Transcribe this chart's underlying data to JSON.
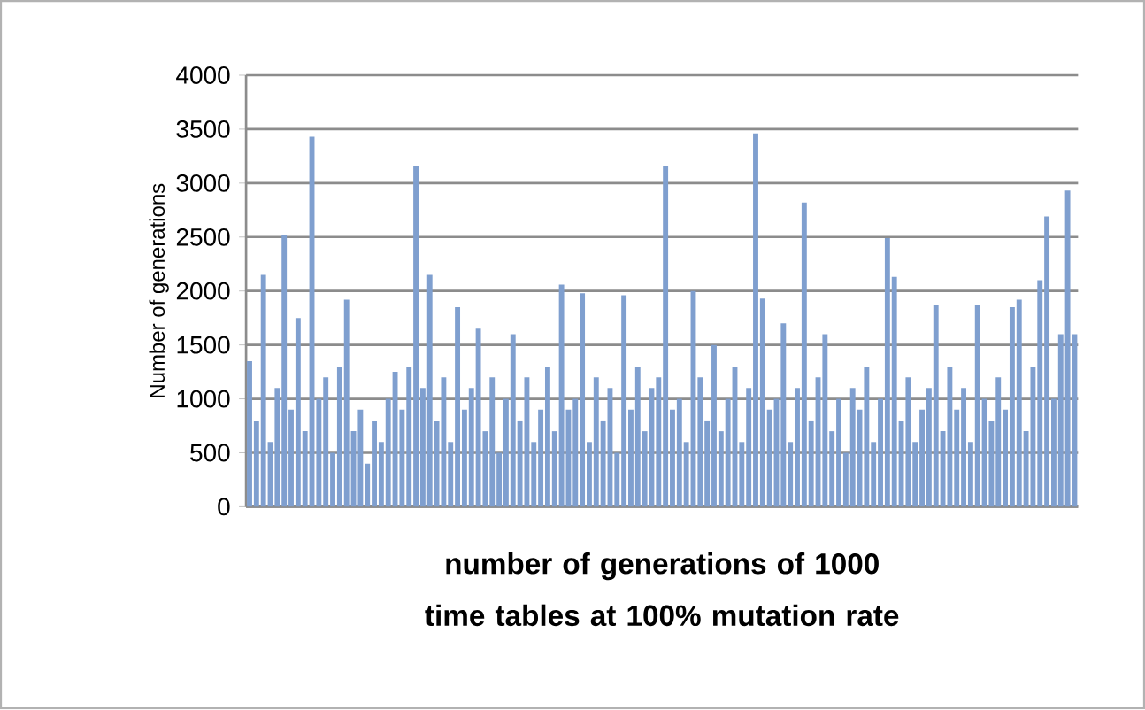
{
  "chart_data": {
    "type": "bar",
    "xlabel": "number of generations of 1000  time tables at 100% mutation rate",
    "ylabel": "Number of generations",
    "categories": [
      null,
      null,
      null,
      null,
      null,
      null,
      null,
      null,
      null,
      null,
      null,
      null,
      null,
      null,
      null,
      null,
      null,
      null,
      null,
      null,
      null,
      null,
      null,
      null,
      null,
      null,
      null,
      null,
      null,
      null,
      null,
      null,
      null,
      null,
      null,
      null,
      null,
      null,
      null,
      null,
      null,
      null,
      null,
      null,
      null,
      null,
      null,
      null,
      null,
      null,
      null,
      null,
      null,
      null,
      null,
      null,
      null,
      null,
      null,
      null,
      null,
      null,
      null,
      null,
      null,
      null,
      null,
      null,
      null,
      null,
      null,
      null,
      null,
      null,
      null,
      null,
      null,
      null,
      null,
      null,
      null,
      null,
      null,
      null,
      null,
      null,
      null,
      null,
      null,
      null,
      null,
      null,
      null,
      null,
      null,
      null,
      null,
      null,
      null,
      null,
      null,
      null,
      null,
      null,
      null,
      null,
      null,
      null,
      null,
      null,
      null,
      null,
      null,
      null,
      null,
      null,
      null,
      null,
      null,
      null
    ],
    "values": [
      1350,
      800,
      2150,
      600,
      1100,
      2520,
      900,
      1750,
      700,
      3430,
      1000,
      1200,
      500,
      1300,
      1920,
      700,
      900,
      400,
      800,
      600,
      1000,
      1250,
      900,
      1300,
      3160,
      1100,
      2150,
      800,
      1200,
      600,
      1850,
      900,
      1100,
      1650,
      700,
      1200,
      500,
      1000,
      1600,
      800,
      1200,
      600,
      900,
      1300,
      700,
      2060,
      900,
      1000,
      1980,
      600,
      1200,
      800,
      1100,
      500,
      1960,
      900,
      1300,
      700,
      1100,
      1200,
      3160,
      900,
      1000,
      600,
      2000,
      1200,
      800,
      1500,
      700,
      1000,
      1300,
      600,
      1100,
      3460,
      1930,
      900,
      1000,
      1700,
      600,
      1100,
      2820,
      800,
      1200,
      1600,
      700,
      1000,
      500,
      1100,
      900,
      1300,
      600,
      1000,
      2490,
      2130,
      800,
      1200,
      600,
      900,
      1100,
      1870,
      700,
      1300,
      900,
      1100,
      600,
      1870,
      1000,
      800,
      1200,
      900,
      1850,
      1920,
      700,
      1300,
      2100,
      2690,
      1000,
      1600,
      2930,
      1600
    ],
    "color": "#7f9fcf",
    "ylim": [
      0,
      4000
    ],
    "yticks": [
      0,
      500,
      1000,
      1500,
      2000,
      2500,
      3000,
      3500,
      4000
    ],
    "grid": "y"
  }
}
